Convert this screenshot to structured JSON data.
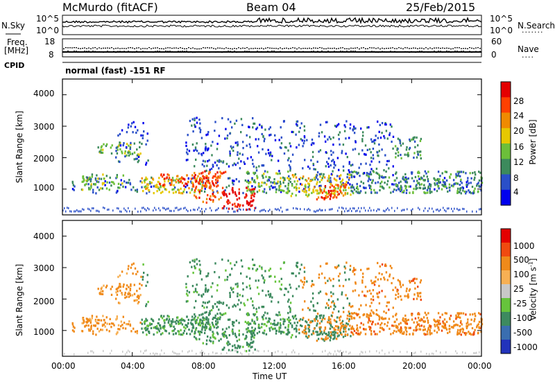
{
  "header": {
    "station": "McMurdo (fitACF)",
    "beam": "Beam 04",
    "date": "25/Feb/2015"
  },
  "top_panels": {
    "nsky_label": "N.Sky",
    "nsky_ticks": [
      "10^5",
      "10^0"
    ],
    "nsearch_label": "N.Search",
    "nsearch_ticks": [
      "10^5",
      "10^0"
    ],
    "freq_label": "Freq.",
    "freq_unit": "[MHz]",
    "freq_ticks": [
      "18",
      "8"
    ],
    "nave_label": "Nave",
    "nave_ticks": [
      "60",
      "0"
    ],
    "cpid_label": "CPID",
    "cpid_text": "normal (fast) -151 RF"
  },
  "chart_data": [
    {
      "type": "heatmap",
      "ylabel": "Slant Range [km]",
      "yticks": [
        "4000",
        "3000",
        "2000",
        "1000"
      ],
      "ylim": [
        180,
        4500
      ],
      "colorbar_label": "Power [dB]",
      "colorbar_ticks": [
        "28",
        "24",
        "20",
        "16",
        "12",
        "8",
        "4"
      ],
      "colors": [
        "#0000ee",
        "#2a4fc8",
        "#3c8a5c",
        "#6cbf3a",
        "#e6c800",
        "#f08a00",
        "#ff4000",
        "#e40000"
      ]
    },
    {
      "type": "heatmap",
      "ylabel": "Slant Range [km]",
      "yticks": [
        "4000",
        "3000",
        "2000",
        "1000"
      ],
      "ylim": [
        180,
        4500
      ],
      "colorbar_label": "Velocity [m s",
      "colorbar_unit_sup": "-1",
      "colorbar_unit_end": "]",
      "colorbar_ticks": [
        "1000",
        "500",
        "100",
        "25",
        "-25",
        "-100",
        "-500",
        "-1000"
      ],
      "colors": [
        "#2233bb",
        "#3a6eb0",
        "#3d8a5f",
        "#66c43c",
        "#c8c8c8",
        "#f7b054",
        "#f08a1a",
        "#f04a10",
        "#e40000"
      ]
    }
  ],
  "x_axis": {
    "ticks": [
      "00:00",
      "04:00",
      "08:00",
      "12:00",
      "16:00",
      "20:00",
      "00:00"
    ],
    "label": "Time UT"
  }
}
